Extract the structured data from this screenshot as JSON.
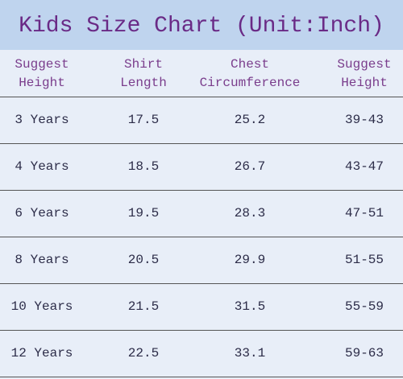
{
  "header": {
    "title": "Kids Size Chart (Unit:Inch)"
  },
  "table": {
    "columns": [
      [
        "Suggest",
        "Height"
      ],
      [
        "Shirt",
        "Length"
      ],
      [
        "Chest",
        "Circumference"
      ],
      [
        "Suggest",
        "Height"
      ]
    ],
    "rows": [
      [
        "3 Years",
        "17.5",
        "25.2",
        "39-43"
      ],
      [
        "4 Years",
        "18.5",
        "26.7",
        "43-47"
      ],
      [
        "6 Years",
        "19.5",
        "28.3",
        "47-51"
      ],
      [
        "8 Years",
        "20.5",
        "29.9",
        "51-55"
      ],
      [
        "10 Years",
        "21.5",
        "31.5",
        "55-59"
      ],
      [
        "12 Years",
        "22.5",
        "33.1",
        "59-63"
      ]
    ]
  }
}
